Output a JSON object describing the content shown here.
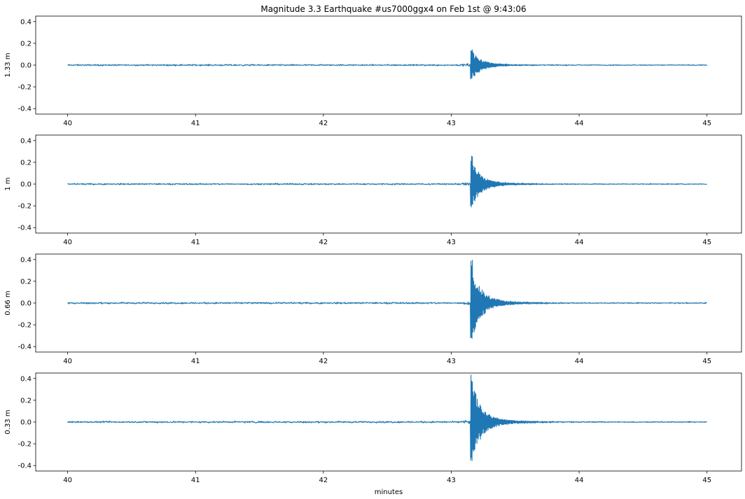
{
  "figure": {
    "title": "Magnitude 3.3 Earthquake #us7000ggx4 on Feb 1st @ 9:43:06",
    "xlabel": "minutes"
  },
  "chart_data": [
    {
      "type": "line",
      "title": "Magnitude 3.3 Earthquake #us7000ggx4 on Feb 1st @ 9:43:06",
      "xlabel": "",
      "ylabel": "1.33 m",
      "xlim": [
        39.75,
        45.27
      ],
      "ylim": [
        -0.45,
        0.45
      ],
      "x_ticks": [
        "40",
        "41",
        "42",
        "43",
        "44",
        "45"
      ],
      "y_ticks": [
        "0.4",
        "0.2",
        "0.0",
        "-0.2",
        "-0.4"
      ],
      "color": "#1f77b4",
      "grid": false,
      "series": [
        {
          "x_start": 40.0,
          "x_end": 45.0,
          "event_onset_min": 43.15,
          "baseline_amplitude": 0.006,
          "peak_max": 0.16,
          "peak_min": -0.13
        }
      ]
    },
    {
      "type": "line",
      "xlabel": "",
      "ylabel": "1 m",
      "xlim": [
        39.75,
        45.27
      ],
      "ylim": [
        -0.45,
        0.45
      ],
      "x_ticks": [
        "40",
        "41",
        "42",
        "43",
        "44",
        "45"
      ],
      "y_ticks": [
        "0.4",
        "0.2",
        "0.0",
        "-0.2",
        "-0.4"
      ],
      "color": "#1f77b4",
      "grid": false,
      "series": [
        {
          "x_start": 40.0,
          "x_end": 45.0,
          "event_onset_min": 43.15,
          "baseline_amplitude": 0.006,
          "peak_max": 0.26,
          "peak_min": -0.21
        }
      ]
    },
    {
      "type": "line",
      "xlabel": "",
      "ylabel": "0.66 m",
      "xlim": [
        39.75,
        45.27
      ],
      "ylim": [
        -0.45,
        0.45
      ],
      "x_ticks": [
        "40",
        "41",
        "42",
        "43",
        "44",
        "45"
      ],
      "y_ticks": [
        "0.4",
        "0.2",
        "0.0",
        "-0.2",
        "-0.4"
      ],
      "color": "#1f77b4",
      "grid": false,
      "series": [
        {
          "x_start": 40.0,
          "x_end": 45.0,
          "event_onset_min": 43.15,
          "baseline_amplitude": 0.007,
          "peak_max": 0.4,
          "peak_min": -0.35
        }
      ]
    },
    {
      "type": "line",
      "xlabel": "minutes",
      "ylabel": "0.33 m",
      "xlim": [
        39.75,
        45.27
      ],
      "ylim": [
        -0.45,
        0.45
      ],
      "x_ticks": [
        "40",
        "41",
        "42",
        "43",
        "44",
        "45"
      ],
      "y_ticks": [
        "0.4",
        "0.2",
        "0.0",
        "-0.2",
        "-0.4"
      ],
      "color": "#1f77b4",
      "grid": false,
      "series": [
        {
          "x_start": 40.0,
          "x_end": 45.0,
          "event_onset_min": 43.15,
          "baseline_amplitude": 0.007,
          "peak_max": 0.44,
          "peak_min": -0.38
        }
      ]
    }
  ]
}
